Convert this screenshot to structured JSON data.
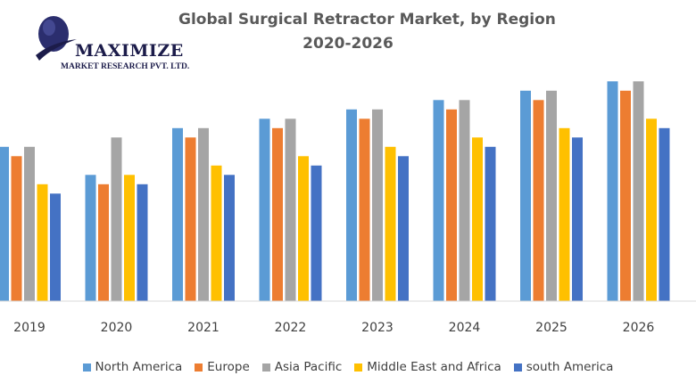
{
  "logo": {
    "name": "MAXIMIZE",
    "subtitle": "MARKET RESEARCH PVT. LTD.",
    "icon": "globe-swoosh-logo"
  },
  "chart_data": {
    "type": "bar",
    "title": "Global Surgical Retractor Market, by Region",
    "subtitle": "2020-2026",
    "categories": [
      "2019",
      "2020",
      "2021",
      "2022",
      "2023",
      "2024",
      "2025",
      "2026"
    ],
    "series": [
      {
        "name": "North America",
        "color": "#5b9bd5",
        "values": [
          16.5,
          13.5,
          18.5,
          19.5,
          20.5,
          21.5,
          22.5,
          23.5
        ]
      },
      {
        "name": "Europe",
        "color": "#ed7d31",
        "values": [
          15.5,
          12.5,
          17.5,
          18.5,
          19.5,
          20.5,
          21.5,
          22.5
        ]
      },
      {
        "name": "Asia Pacific",
        "color": "#a5a5a5",
        "values": [
          16.5,
          17.5,
          18.5,
          19.5,
          20.5,
          21.5,
          22.5,
          23.5
        ]
      },
      {
        "name": "Middle East and Africa",
        "color": "#ffc000",
        "values": [
          12.5,
          13.5,
          14.5,
          15.5,
          16.5,
          17.5,
          18.5,
          19.5
        ]
      },
      {
        "name": "south America",
        "color": "#4472c4",
        "values": [
          11.5,
          12.5,
          13.5,
          14.5,
          15.5,
          16.5,
          17.5,
          18.5
        ]
      }
    ],
    "ylim": [
      0,
      24
    ],
    "xlabel": "",
    "ylabel": "",
    "grid": false,
    "legend_position": "bottom"
  }
}
